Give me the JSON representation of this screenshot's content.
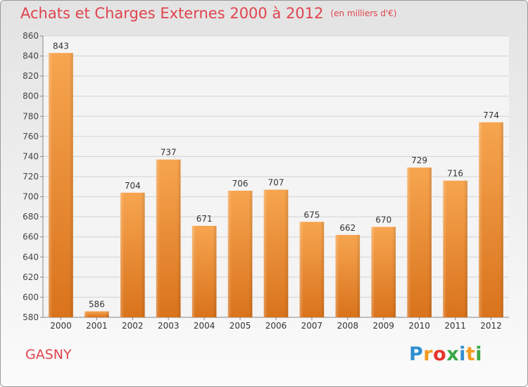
{
  "chart_data": {
    "type": "bar",
    "title": "Achats et Charges Externes 2000 à 2012",
    "subtitle": "(en milliers d'€)",
    "categories": [
      "2000",
      "2001",
      "2002",
      "2003",
      "2004",
      "2005",
      "2006",
      "2007",
      "2008",
      "2009",
      "2010",
      "2011",
      "2012"
    ],
    "values": [
      843,
      586,
      704,
      737,
      671,
      706,
      707,
      675,
      662,
      670,
      729,
      716,
      774
    ],
    "ylim": [
      580,
      860
    ],
    "yticks": [
      580,
      600,
      620,
      640,
      660,
      680,
      700,
      720,
      740,
      760,
      780,
      800,
      820,
      840,
      860
    ],
    "grid": true,
    "bar_color": "#f0902f"
  },
  "commune": "GASNY",
  "logo": {
    "text": "Proxiti",
    "letters": [
      {
        "ch": "P",
        "color": "#2f8fd0"
      },
      {
        "ch": "r",
        "color": "#f39a1e"
      },
      {
        "ch": "o",
        "color": "#e8322c"
      },
      {
        "ch": "x",
        "color": "#3aa745"
      },
      {
        "ch": "i",
        "color": "#2f8fd0"
      },
      {
        "ch": "t",
        "color": "#f39a1e"
      },
      {
        "ch": "i",
        "color": "#3aa745"
      }
    ]
  }
}
